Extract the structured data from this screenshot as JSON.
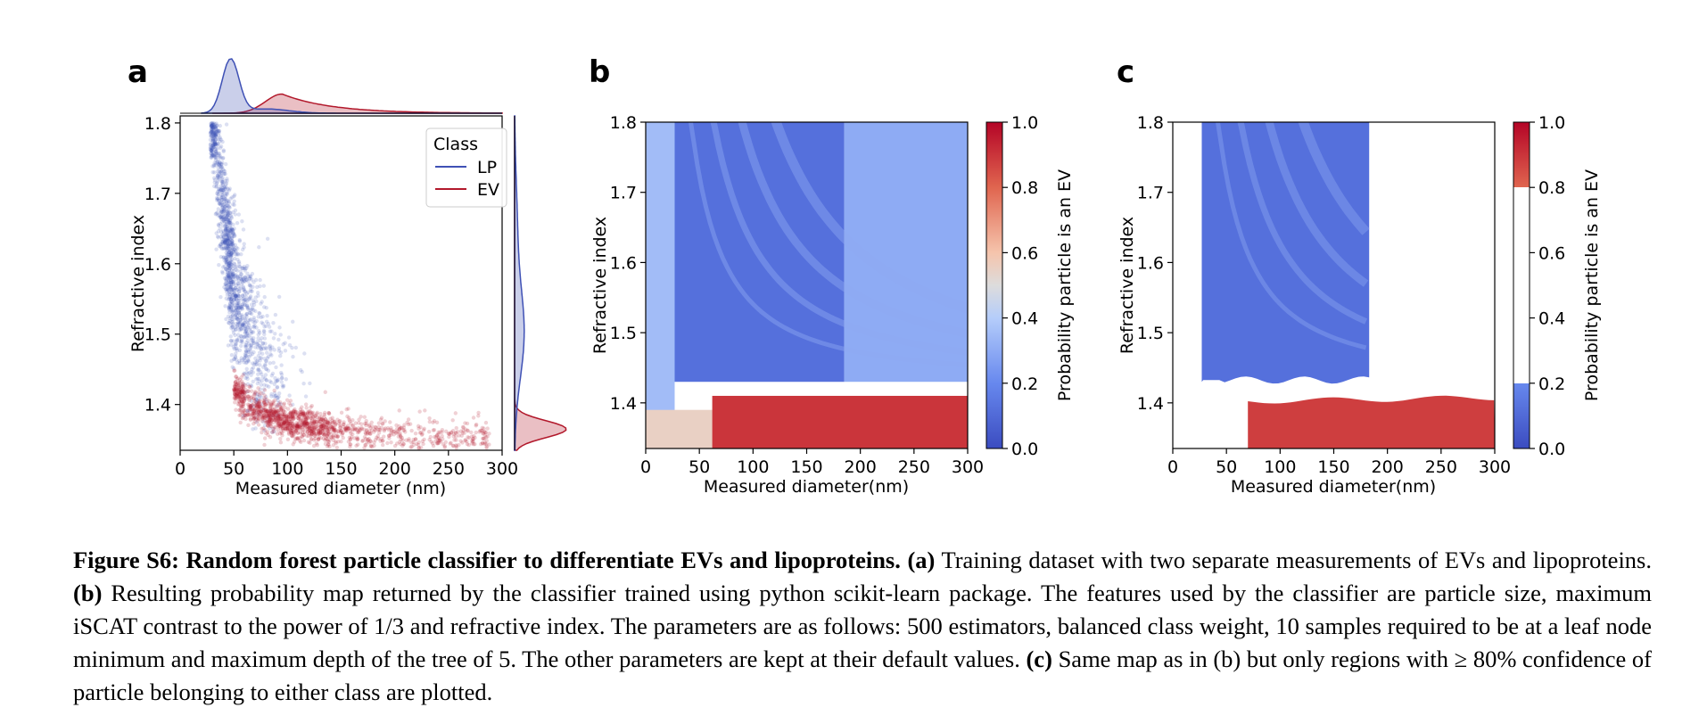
{
  "figure": {
    "panel_labels": [
      "a",
      "b",
      "c"
    ]
  },
  "chart_data": [
    {
      "type": "scatter",
      "panel": "a",
      "xlabel": "Measured diameter (nm)",
      "ylabel": "Refractive index",
      "xlim": [
        0,
        300
      ],
      "ylim": [
        1.335,
        1.81
      ],
      "x_ticks": [
        0,
        50,
        100,
        150,
        200,
        250,
        300
      ],
      "y_ticks": [
        1.4,
        1.5,
        1.6,
        1.7,
        1.8
      ],
      "legend": {
        "title": "Class",
        "entries": [
          "LP",
          "EV"
        ],
        "placement": "top-right"
      },
      "colors": {
        "LP": "#3f51b5",
        "EV": "#b2182b"
      },
      "series": [
        {
          "name": "LP",
          "shape": "n ≈ d^-0.5 decay",
          "x_mode": 48,
          "x_range": [
            28,
            130
          ],
          "y_range": [
            1.36,
            1.8
          ]
        },
        {
          "name": "EV",
          "shape": "band along lower edge",
          "x_mode": 95,
          "x_range": [
            50,
            290
          ],
          "y_range": [
            1.34,
            1.43
          ]
        }
      ],
      "marginal_x": {
        "LP_mode": 47,
        "EV_mode": 95
      },
      "marginal_y": {
        "LP_mode": 1.5,
        "EV_mode": 1.365
      }
    },
    {
      "type": "heatmap",
      "panel": "b",
      "xlabel": "Measured diameter(nm)",
      "ylabel": "Refractive index",
      "xlim": [
        0,
        300
      ],
      "ylim": [
        1.335,
        1.8
      ],
      "x_ticks": [
        0,
        50,
        100,
        150,
        200,
        250,
        300
      ],
      "y_ticks": [
        1.4,
        1.5,
        1.6,
        1.7,
        1.8
      ],
      "colorbar": {
        "label": "Probability particle is an EV",
        "range": [
          0.0,
          1.0
        ],
        "ticks": [
          "0.0",
          "0.2",
          "0.4",
          "0.6",
          "0.8",
          "1.0"
        ]
      },
      "regions": [
        {
          "x": [
            0,
            27
          ],
          "y": [
            1.335,
            1.8
          ],
          "value": 0.35
        },
        {
          "x": [
            27,
            185
          ],
          "y": [
            1.43,
            1.8
          ],
          "value": 0.12
        },
        {
          "x": [
            185,
            300
          ],
          "y": [
            1.43,
            1.8
          ],
          "value": 0.3
        },
        {
          "x": [
            0,
            62
          ],
          "y": [
            1.335,
            1.39
          ],
          "value": 0.55
        },
        {
          "x": [
            62,
            300
          ],
          "y": [
            1.335,
            1.41
          ],
          "value": 0.9
        }
      ]
    },
    {
      "type": "heatmap",
      "panel": "c",
      "xlabel": "Measured diameter(nm)",
      "ylabel": "Refractive index",
      "xlim": [
        0,
        300
      ],
      "ylim": [
        1.335,
        1.8
      ],
      "x_ticks": [
        0,
        50,
        100,
        150,
        200,
        250,
        300
      ],
      "y_ticks": [
        1.4,
        1.5,
        1.6,
        1.7,
        1.8
      ],
      "colorbar": {
        "label": "Probability particle is an EV",
        "range": [
          0.0,
          1.0
        ],
        "ticks": [
          "0.0",
          "0.2",
          "0.4",
          "0.6",
          "0.8",
          "1.0"
        ],
        "masked_range": [
          0.2,
          0.8
        ]
      },
      "regions": [
        {
          "x": [
            27,
            183
          ],
          "y": [
            1.43,
            1.8
          ],
          "value": 0.12
        },
        {
          "x": [
            70,
            300
          ],
          "y": [
            1.335,
            1.41
          ],
          "value": 0.88
        }
      ]
    }
  ],
  "caption": {
    "title": "Figure S6: Random forest particle classifier to differentiate EVs and lipoproteins.",
    "a_label": "(a)",
    "a_text": "Training dataset with two separate measurements of EVs and lipoproteins.",
    "b_label": "(b)",
    "b_text": "Resulting probability map returned by the classifier trained using python scikit-learn package.  The features used by the classifier are particle size, maximum iSCAT contrast to the power of 1/3 and refractive index.  The parameters are as follows: 500 estimators, balanced class weight, 10 samples required to be at a leaf node minimum and maximum depth of the tree of 5.  The other parameters are kept at their default values.",
    "c_label": "(c)",
    "c_text": "Same map as in (b) but only regions with ≥ 80% confidence of particle belonging to either class are plotted."
  }
}
